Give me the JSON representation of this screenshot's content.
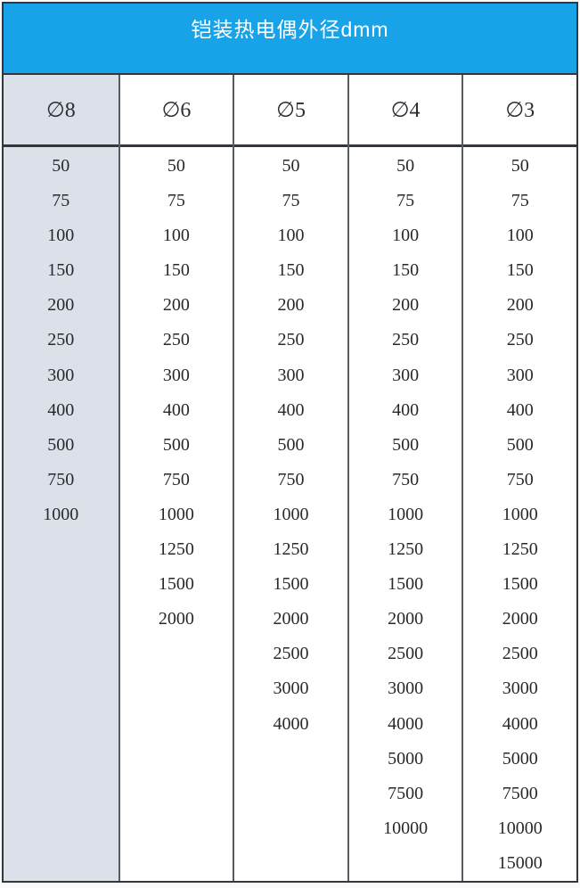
{
  "title": "铠装热电偶外径dmm",
  "columns": [
    {
      "label": "∅8",
      "values": [
        "50",
        "75",
        "100",
        "150",
        "200",
        "250",
        "300",
        "400",
        "500",
        "750",
        "1000"
      ]
    },
    {
      "label": "∅6",
      "values": [
        "50",
        "75",
        "100",
        "150",
        "200",
        "250",
        "300",
        "400",
        "500",
        "750",
        "1000",
        "1250",
        "1500",
        "2000"
      ]
    },
    {
      "label": "∅5",
      "values": [
        "50",
        "75",
        "100",
        "150",
        "200",
        "250",
        "300",
        "400",
        "500",
        "750",
        "1000",
        "1250",
        "1500",
        "2000",
        "2500",
        "3000",
        "4000"
      ]
    },
    {
      "label": "∅4",
      "values": [
        "50",
        "75",
        "100",
        "150",
        "200",
        "250",
        "300",
        "400",
        "500",
        "750",
        "1000",
        "1250",
        "1500",
        "2000",
        "2500",
        "3000",
        "4000",
        "5000",
        "7500",
        "10000"
      ]
    },
    {
      "label": "∅3",
      "values": [
        "50",
        "75",
        "100",
        "150",
        "200",
        "250",
        "300",
        "400",
        "500",
        "750",
        "1000",
        "1250",
        "1500",
        "2000",
        "2500",
        "3000",
        "4000",
        "5000",
        "7500",
        "10000",
        "15000"
      ]
    }
  ],
  "colors": {
    "accent": "#18a3e8",
    "shade": "#dbe0e9",
    "border_dark": "#33363c",
    "border_mid": "#565b64"
  }
}
